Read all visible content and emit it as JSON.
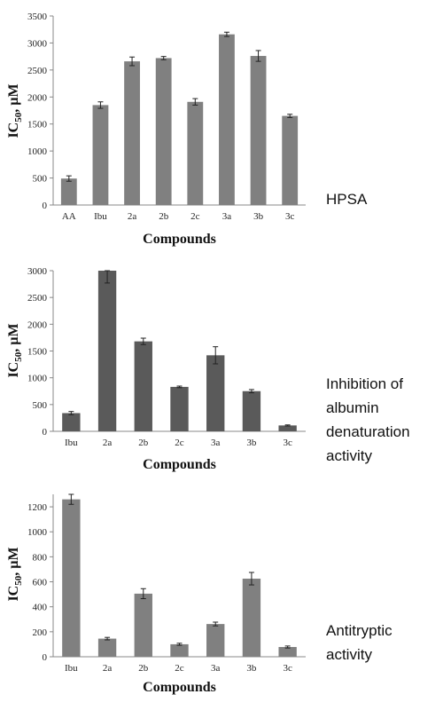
{
  "chart_data": [
    {
      "type": "bar",
      "categories": [
        "AA",
        "Ibu",
        "2a",
        "2b",
        "2c",
        "3a",
        "3b",
        "3c"
      ],
      "values": [
        490,
        1850,
        2660,
        2720,
        1910,
        3160,
        2760,
        1650
      ],
      "errors": [
        50,
        60,
        80,
        30,
        60,
        40,
        100,
        30
      ],
      "ylim": [
        0,
        3500
      ],
      "yticks": [
        0,
        500,
        1000,
        1500,
        2000,
        2500,
        3000,
        3500
      ],
      "ylabel_main": "IC",
      "ylabel_sub": "50",
      "ylabel_rest": ", µM",
      "xlabel": "Compounds",
      "side_label_lines": [
        "HPSA"
      ],
      "bar_color": "#808080"
    },
    {
      "type": "bar",
      "categories": [
        "Ibu",
        "2a",
        "2b",
        "2c",
        "3a",
        "3b",
        "3c"
      ],
      "values": [
        340,
        3000,
        1680,
        830,
        1420,
        750,
        110
      ],
      "errors": [
        30,
        230,
        60,
        15,
        160,
        30,
        10
      ],
      "ylim": [
        0,
        3000
      ],
      "yticks": [
        0,
        500,
        1000,
        1500,
        2000,
        2500,
        3000
      ],
      "ylabel_main": "IC",
      "ylabel_sub": "50",
      "ylabel_rest": ", µM",
      "xlabel": "Compounds",
      "side_label_lines": [
        "Inhibition of",
        "albumin",
        "denaturation",
        "activity"
      ],
      "bar_color": "#5a5a5a"
    },
    {
      "type": "bar",
      "categories": [
        "Ibu",
        "2a",
        "2b",
        "2c",
        "3a",
        "3b",
        "3c"
      ],
      "values": [
        1260,
        145,
        505,
        100,
        262,
        625,
        78
      ],
      "errors": [
        40,
        10,
        40,
        8,
        15,
        50,
        8
      ],
      "ylim": [
        0,
        1300
      ],
      "yticks": [
        0,
        200,
        400,
        600,
        800,
        1000,
        1200
      ],
      "ylabel_main": "IC",
      "ylabel_sub": "50",
      "ylabel_rest": ", µM",
      "xlabel": "Compounds",
      "side_label_lines": [
        "Antitryptic",
        "activity"
      ],
      "bar_color": "#808080"
    }
  ]
}
